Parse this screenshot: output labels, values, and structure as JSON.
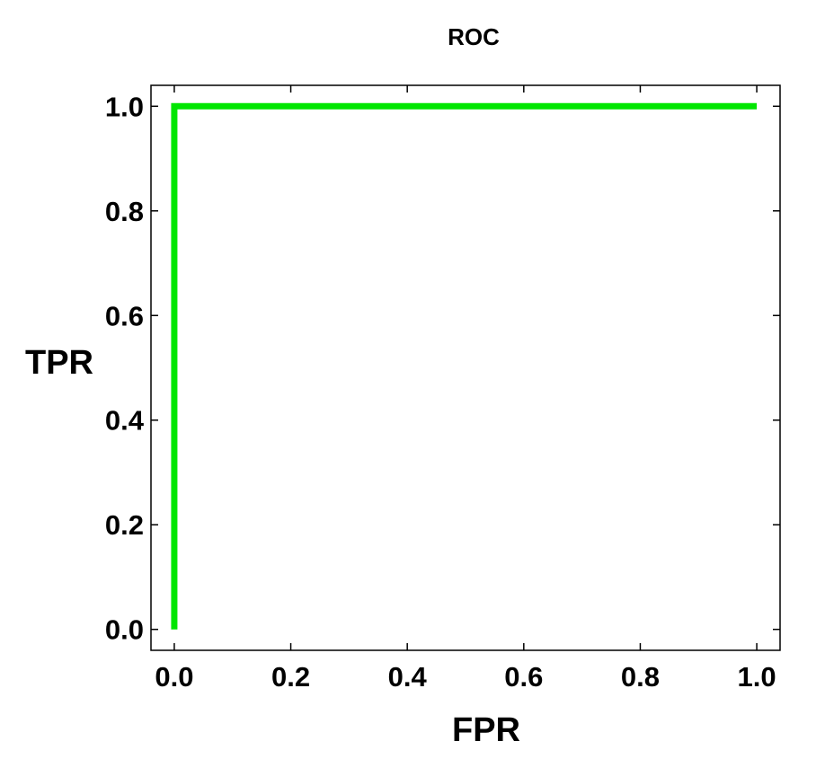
{
  "chart_data": {
    "type": "line",
    "title": "ROC",
    "xlabel": "FPR",
    "ylabel": "TPR",
    "xlim": [
      -0.04,
      1.04
    ],
    "ylim": [
      -0.04,
      1.04
    ],
    "xticks": [
      0.0,
      0.2,
      0.4,
      0.6,
      0.8,
      1.0
    ],
    "xtick_labels": [
      "0.0",
      "0.2",
      "0.4",
      "0.6",
      "0.8",
      "1.0"
    ],
    "yticks": [
      0.0,
      0.2,
      0.4,
      0.6,
      0.8,
      1.0
    ],
    "ytick_labels": [
      "0.0",
      "0.2",
      "0.4",
      "0.6",
      "0.8",
      "1.0"
    ],
    "grid": false,
    "series": [
      {
        "color": "#00e600",
        "x": [
          0.0,
          0.0,
          1.0
        ],
        "y": [
          0.0,
          1.0,
          1.0
        ]
      }
    ]
  }
}
